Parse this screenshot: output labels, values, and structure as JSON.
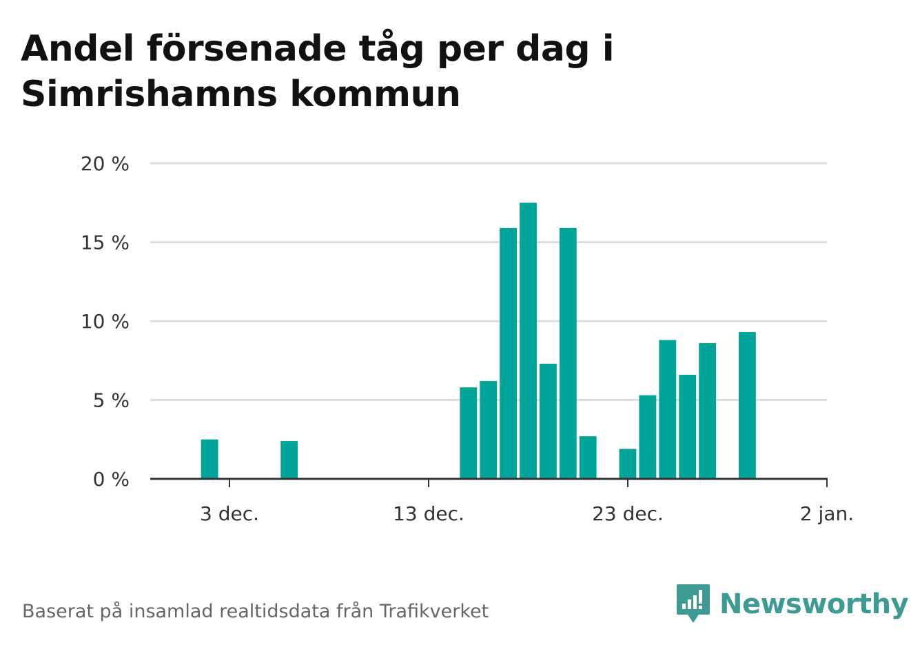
{
  "title_line1": "Andel försenade tåg per dag i",
  "title_line2": "Simrishamns kommun",
  "footer_text": "Baserat på insamlad realtidsdata från Trafikverket",
  "brand_name": "Newsworthy",
  "colors": {
    "bar": "#00a499",
    "brand": "#3d9b93",
    "grid": "#dddddd",
    "axis": "#333333"
  },
  "chart_data": {
    "type": "bar",
    "title": "Andel försenade tåg per dag i Simrishamns kommun",
    "xlabel": "",
    "ylabel": "",
    "ylim": [
      0,
      20
    ],
    "y_ticks": [
      0,
      5,
      10,
      15,
      20
    ],
    "y_tick_labels": [
      "0 %",
      "5 %",
      "10 %",
      "15 %",
      "20 %"
    ],
    "x_tick_labels": [
      "3 dec.",
      "13 dec.",
      "23 dec.",
      "2 jan."
    ],
    "x_tick_dates": [
      "2023-12-03",
      "2023-12-13",
      "2023-12-23",
      "2024-01-02"
    ],
    "grid": true,
    "series": [
      {
        "values": [
          {
            "date": "2023-12-02",
            "value": 2.5
          },
          {
            "date": "2023-12-06",
            "value": 2.4
          },
          {
            "date": "2023-12-15",
            "value": 5.8
          },
          {
            "date": "2023-12-16",
            "value": 6.2
          },
          {
            "date": "2023-12-17",
            "value": 15.9
          },
          {
            "date": "2023-12-18",
            "value": 17.5
          },
          {
            "date": "2023-12-19",
            "value": 7.3
          },
          {
            "date": "2023-12-20",
            "value": 15.9
          },
          {
            "date": "2023-12-21",
            "value": 2.7
          },
          {
            "date": "2023-12-23",
            "value": 1.9
          },
          {
            "date": "2023-12-24",
            "value": 5.3
          },
          {
            "date": "2023-12-25",
            "value": 8.8
          },
          {
            "date": "2023-12-26",
            "value": 6.6
          },
          {
            "date": "2023-12-27",
            "value": 8.6
          },
          {
            "date": "2023-12-29",
            "value": 9.3
          }
        ]
      }
    ]
  }
}
